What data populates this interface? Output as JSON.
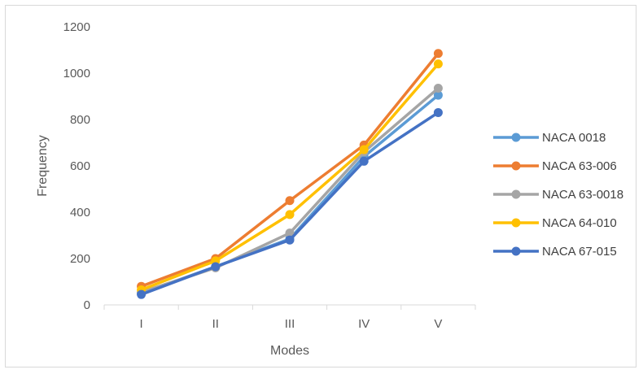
{
  "chart_data": {
    "type": "line",
    "title": "",
    "xlabel": "Modes",
    "ylabel": "Frequency",
    "categories": [
      "I",
      "II",
      "III",
      "IV",
      "V"
    ],
    "ylim": [
      0,
      1200
    ],
    "yticks": [
      0,
      200,
      400,
      600,
      800,
      1000,
      1200
    ],
    "grid": false,
    "legend_position": "right",
    "series": [
      {
        "name": "NACA 0018",
        "color": "#5B9BD5",
        "values": [
          50,
          165,
          285,
          640,
          905
        ]
      },
      {
        "name": "NACA 63-006",
        "color": "#ED7D31",
        "values": [
          80,
          200,
          450,
          690,
          1085
        ]
      },
      {
        "name": "NACA 63-0018",
        "color": "#A5A5A5",
        "values": [
          55,
          160,
          310,
          660,
          935
        ]
      },
      {
        "name": "NACA 64-010",
        "color": "#FFC000",
        "values": [
          65,
          190,
          390,
          670,
          1040
        ]
      },
      {
        "name": "NACA 67-015",
        "color": "#4472C4",
        "values": [
          45,
          165,
          280,
          620,
          830
        ]
      }
    ]
  }
}
